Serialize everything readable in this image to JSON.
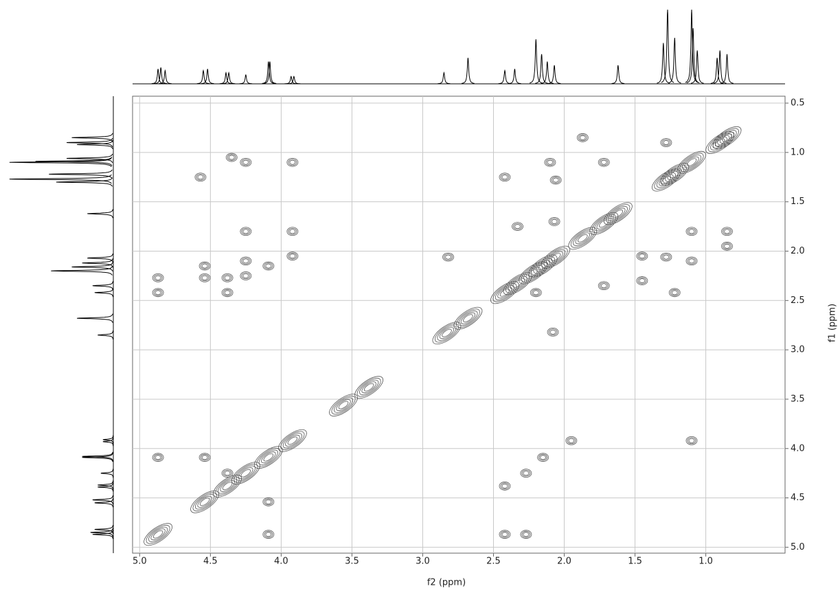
{
  "chart_data": {
    "type": "contour",
    "xlabel": "f2 (ppm)",
    "ylabel": "f1 (ppm)",
    "xlim": [
      5.05,
      0.44
    ],
    "ylim": [
      0.43,
      5.06
    ],
    "xticks": [
      {
        "value": 5,
        "label": "5.0"
      },
      4.5,
      {
        "value": 4,
        "label": "4.0"
      },
      3.5,
      {
        "value": 3,
        "label": "3.0"
      },
      2.5,
      {
        "value": 2,
        "label": "2.0"
      },
      1.5,
      {
        "value": 1,
        "label": "1.0"
      }
    ],
    "yticks": [
      0.5,
      {
        "value": 1,
        "label": "1.0"
      },
      1.5,
      {
        "value": 2,
        "label": "2.0"
      },
      2.5,
      {
        "value": 3,
        "label": "3.0"
      },
      3.5,
      {
        "value": 4,
        "label": "4.0"
      },
      4.5,
      {
        "value": 5,
        "label": "5.0"
      }
    ],
    "grid": true,
    "color": "#555555",
    "x": [
      4.87,
      4.54,
      4.38,
      4.25,
      4.09,
      3.92,
      3.56,
      3.38,
      2.83,
      2.68,
      2.42,
      2.33,
      2.22,
      2.15,
      2.06,
      1.87,
      1.72,
      1.62,
      1.28,
      1.22,
      1.1,
      0.9,
      0.85,
      4.87,
      4.87,
      4.87,
      4.57,
      4.54,
      4.54,
      4.54,
      4.38,
      4.38,
      4.38,
      4.25,
      4.25,
      4.25,
      4.09,
      4.09,
      4.09,
      4.35,
      4.25,
      3.92,
      3.92,
      3.92,
      2.82,
      2.42,
      2.42,
      2.27,
      2.27,
      2.15,
      2.1,
      2.08,
      1.95,
      1.87,
      1.72,
      1.72,
      1.45,
      1.45,
      1.28,
      1.1,
      1.1,
      1.1,
      0.85,
      0.85,
      2.42,
      2.07,
      2.33,
      2.06,
      1.28,
      1.22,
      2.2
    ],
    "values": [
      4.87,
      4.54,
      4.38,
      4.25,
      4.09,
      3.92,
      3.56,
      3.38,
      2.83,
      2.68,
      2.42,
      2.33,
      2.22,
      2.15,
      2.06,
      1.87,
      1.72,
      1.62,
      1.28,
      1.22,
      1.1,
      0.9,
      0.85,
      2.27,
      2.42,
      4.09,
      1.25,
      2.15,
      2.27,
      4.09,
      2.27,
      2.42,
      4.25,
      2.1,
      2.25,
      1.8,
      2.15,
      4.54,
      4.87,
      1.05,
      1.1,
      1.1,
      2.05,
      1.8,
      2.06,
      4.38,
      4.87,
      4.25,
      4.87,
      4.09,
      1.1,
      2.82,
      3.92,
      0.85,
      1.1,
      2.35,
      2.05,
      2.3,
      0.9,
      1.8,
      2.1,
      3.92,
      1.8,
      1.95,
      1.25,
      1.7,
      1.75,
      1.28,
      2.06,
      2.42,
      2.42
    ],
    "projection": {
      "x": [
        4.87,
        4.85,
        4.82,
        4.55,
        4.52,
        4.39,
        4.37,
        4.25,
        4.09,
        4.08,
        3.93,
        3.91,
        2.85,
        2.68,
        2.42,
        2.35,
        2.2,
        2.16,
        2.12,
        2.07,
        1.62,
        1.3,
        1.27,
        1.22,
        1.1,
        1.09,
        1.06,
        0.92,
        0.9,
        0.85
      ],
      "values": [
        20,
        22,
        18,
        18,
        20,
        15,
        15,
        12,
        30,
        30,
        10,
        10,
        15,
        35,
        18,
        20,
        60,
        40,
        30,
        25,
        25,
        55,
        100,
        62,
        100,
        75,
        45,
        35,
        45,
        40
      ]
    }
  }
}
